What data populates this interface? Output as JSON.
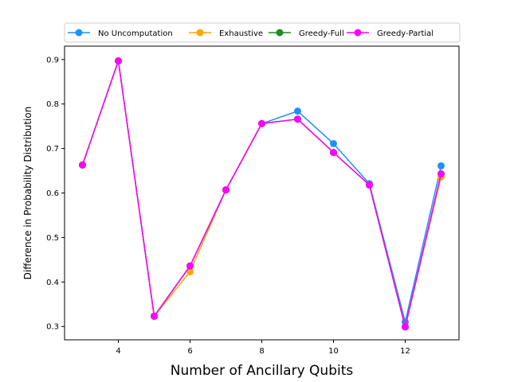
{
  "chart_data": {
    "type": "line",
    "xlabel": "Number of Ancillary Qubits",
    "ylabel": "Difference in Probability Distribution",
    "xlim": [
      2.5,
      13.5
    ],
    "ylim": [
      0.27,
      0.93
    ],
    "xticks": [
      4,
      6,
      8,
      10,
      12
    ],
    "yticks": [
      0.3,
      0.4,
      0.5,
      0.6,
      0.7,
      0.8,
      0.9
    ],
    "xtick_labels": [
      "4",
      "6",
      "8",
      "10",
      "12"
    ],
    "ytick_labels": [
      "0.3",
      "0.4",
      "0.5",
      "0.6",
      "0.7",
      "0.8",
      "0.9"
    ],
    "grid": false,
    "legend_position": "top",
    "x": [
      3,
      4,
      5,
      6,
      7,
      8,
      9,
      10,
      11,
      12,
      13
    ],
    "series": [
      {
        "name": "No Uncomputation",
        "color": "#1e90ff",
        "values": [
          0.663,
          0.897,
          0.323,
          0.436,
          0.607,
          0.756,
          0.784,
          0.711,
          0.621,
          0.31,
          0.661
        ]
      },
      {
        "name": "Exhaustive",
        "color": "#ffa500",
        "values": [
          0.663,
          0.897,
          0.323,
          0.423,
          0.607,
          0.756,
          0.766,
          0.691,
          0.618,
          0.299,
          0.636
        ]
      },
      {
        "name": "Greedy-Full",
        "color": "#228b22",
        "values": [
          0.663,
          0.897,
          0.323,
          0.436,
          0.607,
          0.756,
          0.766,
          0.691,
          0.618,
          0.299,
          0.643
        ]
      },
      {
        "name": "Greedy-Partial",
        "color": "#ff00ff",
        "values": [
          0.663,
          0.897,
          0.323,
          0.436,
          0.607,
          0.756,
          0.766,
          0.691,
          0.618,
          0.299,
          0.643
        ]
      }
    ]
  }
}
